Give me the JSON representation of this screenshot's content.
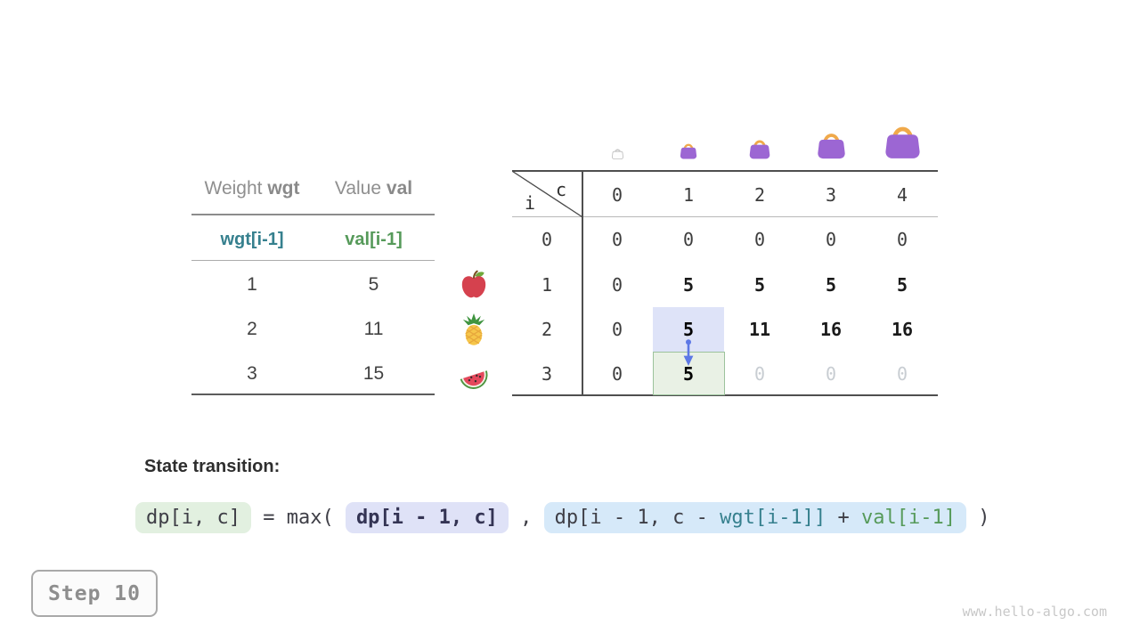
{
  "palette": {
    "teal": "#36808E",
    "green_text": "#569A5A",
    "cell_blue_bg": "#DEE3F8",
    "cell_green_bg": "#E9F1E5",
    "cell_green_border": "#9CC39C",
    "box_green_bg": "#E2F0E0",
    "box_purple_bg": "#DFE2F7",
    "box_blue_bg": "#D6E9F9",
    "arrow_blue": "#5D78E6",
    "bag_body_purple": "#9C66D3",
    "bag_handle_orange": "#F0A94A"
  },
  "items_table": {
    "col1_header": {
      "normal": "Weight ",
      "bold": "wgt"
    },
    "col2_header": {
      "normal": "Value ",
      "bold": "val"
    },
    "array_row": {
      "weight": "wgt[i-1]",
      "value": "val[i-1]"
    },
    "rows": [
      {
        "icon": "apple",
        "weight": "1",
        "value": "5"
      },
      {
        "icon": "pineapple",
        "weight": "2",
        "value": "11"
      },
      {
        "icon": "watermelon",
        "weight": "3",
        "value": "15"
      }
    ]
  },
  "dp_table": {
    "corner": {
      "col_var": "c",
      "row_var": "i"
    },
    "capacity_icons": [
      "bag-empty",
      "bag-size-1",
      "bag-size-2",
      "bag-size-3",
      "bag-size-4"
    ],
    "col_headers": [
      "0",
      "1",
      "2",
      "3",
      "4"
    ],
    "row_headers": [
      "0",
      "1",
      "2",
      "3"
    ],
    "cells": [
      [
        {
          "v": "0"
        },
        {
          "v": "0"
        },
        {
          "v": "0"
        },
        {
          "v": "0"
        },
        {
          "v": "0"
        }
      ],
      [
        {
          "v": "0"
        },
        {
          "v": "5",
          "computed": true
        },
        {
          "v": "5",
          "computed": true
        },
        {
          "v": "5",
          "computed": true
        },
        {
          "v": "5",
          "computed": true
        }
      ],
      [
        {
          "v": "0"
        },
        {
          "v": "5",
          "strong": true,
          "highlight": "blue"
        },
        {
          "v": "11",
          "computed": true
        },
        {
          "v": "16",
          "computed": true
        },
        {
          "v": "16",
          "computed": true
        }
      ],
      [
        {
          "v": "0"
        },
        {
          "v": "5",
          "strong": true,
          "highlight": "green"
        },
        {
          "v": "0",
          "dim": true
        },
        {
          "v": "0",
          "dim": true
        },
        {
          "v": "0",
          "dim": true
        }
      ]
    ],
    "arrow": {
      "from_cell": [
        2,
        1
      ],
      "to_cell": [
        3,
        1
      ]
    }
  },
  "transition": {
    "label": "State transition:",
    "lhs": "dp[i, c]",
    "operator": " = max( ",
    "arg1": "dp[i - 1, c]",
    "separator": " , ",
    "arg2_segments": [
      {
        "text": "dp[i - 1, c - ",
        "color": "default"
      },
      {
        "text": "wgt[i-1]]",
        "color": "teal"
      },
      {
        "text": " + ",
        "color": "default"
      },
      {
        "text": "val[i-1]",
        "color": "green"
      }
    ],
    "close": " )"
  },
  "step_label": "Step 10",
  "watermark": "www.hello-algo.com"
}
